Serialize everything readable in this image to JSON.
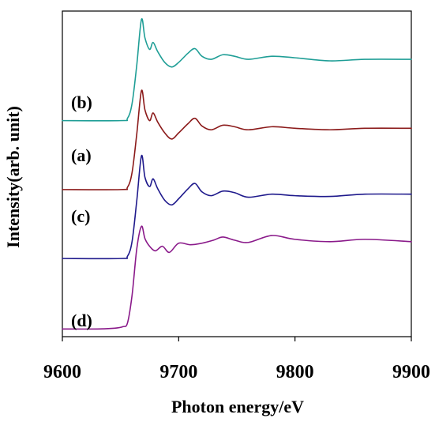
{
  "chart_data": {
    "type": "line",
    "title": "",
    "xlabel": "Photon energy/eV",
    "ylabel": "Intensity(arb. unit)",
    "xlim": [
      9600,
      9900
    ],
    "x_ticks": [
      "9600",
      "9700",
      "9800",
      "9900"
    ],
    "grid": false,
    "legend": "none",
    "series": [
      {
        "name": "(b)",
        "color": "#1f9e96",
        "offset": 2.7,
        "x": [
          9600,
          9650,
          9656,
          9660,
          9664,
          9668,
          9671,
          9675,
          9678,
          9682,
          9688,
          9694,
          9700,
          9708,
          9714,
          9720,
          9728,
          9738,
          9748,
          9760,
          9780,
          9800,
          9830,
          9860,
          9900
        ],
        "y": [
          0.02,
          0.02,
          0.05,
          0.25,
          0.75,
          1.34,
          1.1,
          0.95,
          1.04,
          0.92,
          0.78,
          0.72,
          0.78,
          0.9,
          0.96,
          0.86,
          0.82,
          0.88,
          0.86,
          0.82,
          0.86,
          0.84,
          0.8,
          0.82,
          0.82
        ]
      },
      {
        "name": "(a)",
        "color": "#8b1a1a",
        "offset": 1.8,
        "x": [
          9600,
          9650,
          9656,
          9660,
          9664,
          9668,
          9671,
          9675,
          9678,
          9682,
          9688,
          9694,
          9700,
          9708,
          9714,
          9720,
          9728,
          9738,
          9748,
          9760,
          9780,
          9800,
          9830,
          9860,
          9900
        ],
        "y": [
          0.02,
          0.02,
          0.05,
          0.25,
          0.75,
          1.31,
          1.06,
          0.92,
          1.02,
          0.9,
          0.76,
          0.68,
          0.76,
          0.88,
          0.95,
          0.85,
          0.8,
          0.86,
          0.84,
          0.8,
          0.84,
          0.82,
          0.8,
          0.82,
          0.82
        ]
      },
      {
        "name": "(c)",
        "color": "#1f1a8c",
        "offset": 0.9,
        "x": [
          9600,
          9650,
          9656,
          9660,
          9664,
          9668,
          9671,
          9675,
          9678,
          9682,
          9688,
          9694,
          9700,
          9708,
          9714,
          9720,
          9728,
          9738,
          9748,
          9760,
          9780,
          9800,
          9830,
          9860,
          9900
        ],
        "y": [
          0.02,
          0.02,
          0.05,
          0.25,
          0.78,
          1.36,
          1.08,
          0.96,
          1.06,
          0.93,
          0.78,
          0.72,
          0.8,
          0.93,
          1.0,
          0.89,
          0.84,
          0.9,
          0.88,
          0.82,
          0.86,
          0.84,
          0.83,
          0.86,
          0.86
        ]
      },
      {
        "name": "(d)",
        "color": "#8a1a8a",
        "offset": 0.0,
        "x": [
          9600,
          9630,
          9645,
          9652,
          9656,
          9660,
          9664,
          9668,
          9671,
          9675,
          9680,
          9686,
          9692,
          9700,
          9710,
          9720,
          9730,
          9738,
          9748,
          9760,
          9780,
          9800,
          9830,
          9860,
          9900
        ],
        "y": [
          0.0,
          0.0,
          0.01,
          0.03,
          0.08,
          0.45,
          1.05,
          1.34,
          1.18,
          1.08,
          1.02,
          1.08,
          1.0,
          1.12,
          1.1,
          1.12,
          1.16,
          1.2,
          1.16,
          1.13,
          1.22,
          1.17,
          1.14,
          1.17,
          1.14
        ]
      }
    ],
    "series_label_order": [
      "(b)",
      "(a)",
      "(c)",
      "(d)"
    ]
  }
}
